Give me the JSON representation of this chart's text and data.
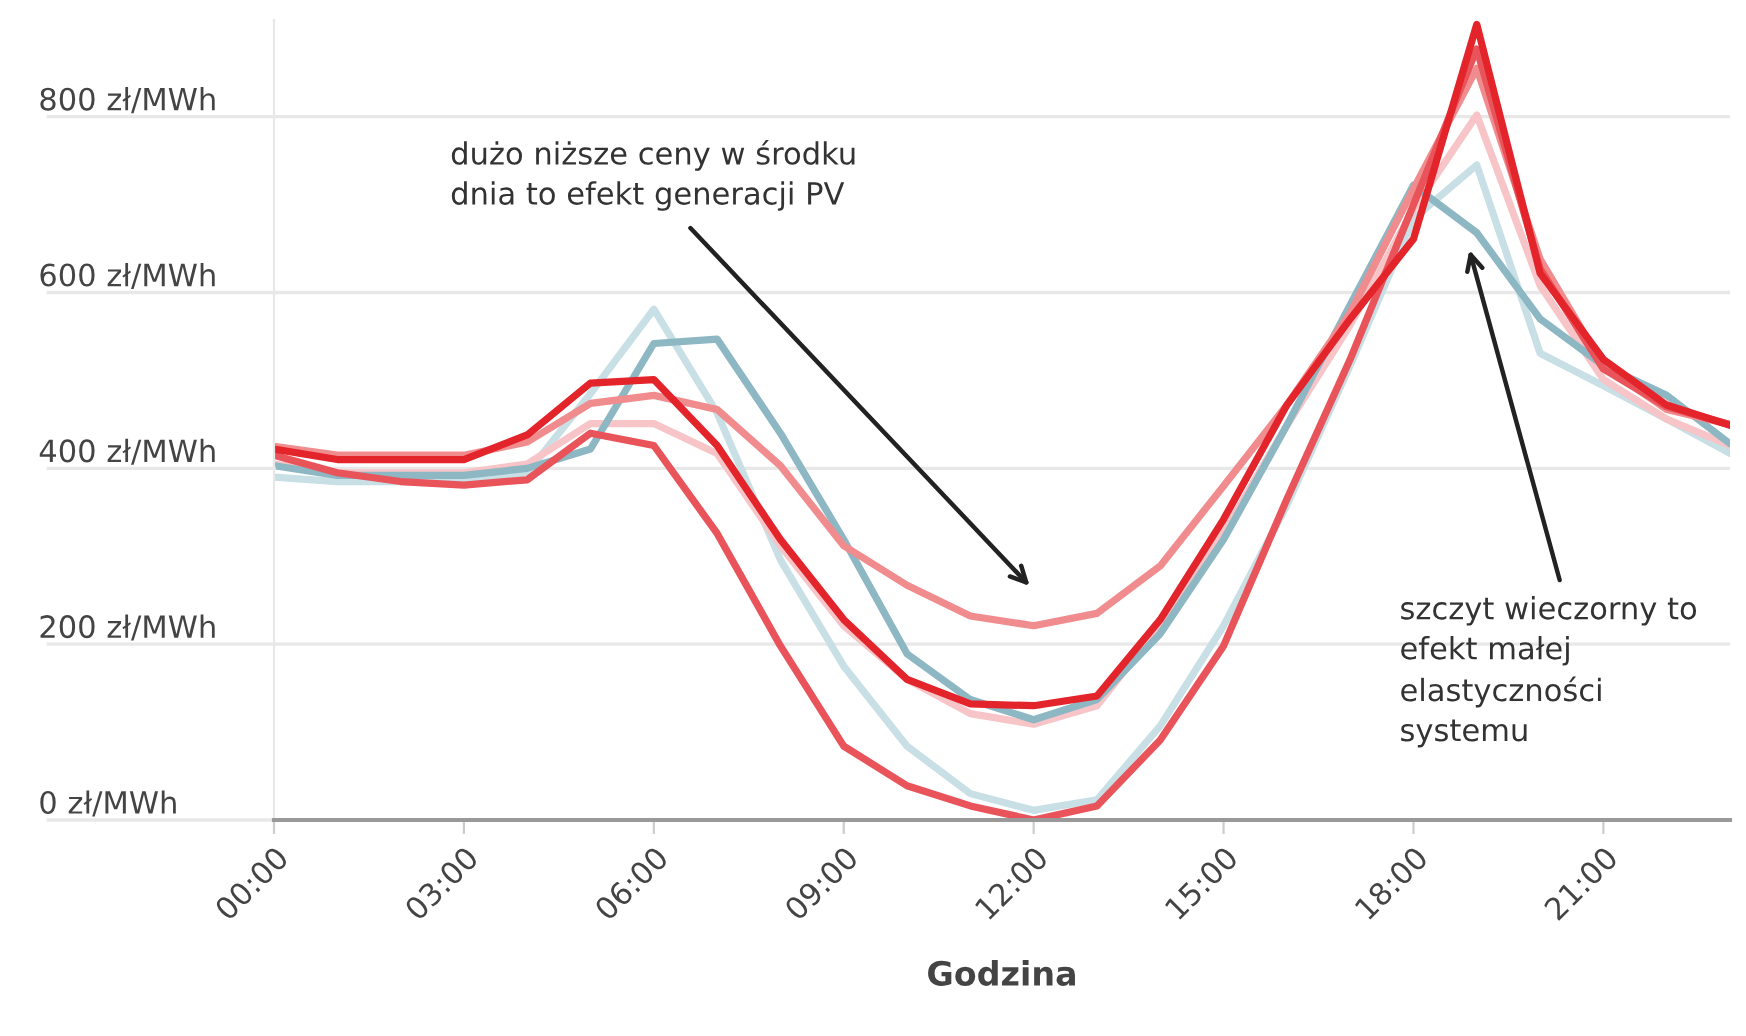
{
  "chart_data": {
    "type": "line",
    "xlabel": "Godzina",
    "xlim": [
      0,
      23
    ],
    "xticks": [
      {
        "value": 0,
        "label": "00:00"
      },
      {
        "value": 3,
        "label": "03:00"
      },
      {
        "value": 6,
        "label": "06:00"
      },
      {
        "value": 9,
        "label": "09:00"
      },
      {
        "value": 12,
        "label": "12:00"
      },
      {
        "value": 15,
        "label": "15:00"
      },
      {
        "value": 18,
        "label": "18:00"
      },
      {
        "value": 21,
        "label": "21:00"
      }
    ],
    "ylim": [
      0,
      910
    ],
    "yticks": [
      {
        "value": 0,
        "label": "0 zł/MWh"
      },
      {
        "value": 200,
        "label": "200 zł/MWh"
      },
      {
        "value": 400,
        "label": "400 zł/MWh"
      },
      {
        "value": 600,
        "label": "600 zł/MWh"
      },
      {
        "value": 800,
        "label": "800 zł/MWh"
      }
    ],
    "grid": "y",
    "marker": "none",
    "line_style": "solid",
    "x": [
      0,
      1,
      2,
      3,
      4,
      5,
      6,
      7,
      8,
      9,
      10,
      11,
      12,
      13,
      14,
      15,
      16,
      17,
      18,
      19,
      20,
      21,
      22,
      23
    ],
    "series": [
      {
        "color": "#c7dfe5",
        "values": [
          390,
          385,
          385,
          385,
          395,
          485,
          581,
          463,
          296,
          175,
          84,
          30,
          11,
          23,
          107,
          221,
          358,
          517,
          684,
          745,
          531,
          494,
          456,
          417
        ]
      },
      {
        "color": "#f7c4c7",
        "values": [
          405,
          395,
          395,
          395,
          405,
          451,
          451,
          417,
          312,
          221,
          160,
          121,
          109,
          130,
          221,
          326,
          449,
          563,
          695,
          802,
          608,
          501,
          456,
          426
        ]
      },
      {
        "color": "#8db7c3",
        "values": [
          403,
          392,
          392,
          392,
          400,
          422,
          542,
          547,
          440,
          319,
          189,
          137,
          114,
          137,
          212,
          319,
          449,
          586,
          722,
          668,
          570,
          517,
          483,
          428
        ]
      },
      {
        "color": "#f08c8e",
        "values": [
          425,
          415,
          415,
          415,
          430,
          474,
          483,
          467,
          403,
          312,
          267,
          232,
          221,
          235,
          289,
          380,
          472,
          577,
          718,
          855,
          638,
          517,
          467,
          450
        ]
      },
      {
        "color": "#e9545b",
        "values": [
          415,
          395,
          385,
          381,
          387,
          440,
          426,
          326,
          198,
          84,
          39,
          16,
          0,
          16,
          91,
          198,
          365,
          524,
          700,
          877,
          627,
          513,
          470,
          450
        ]
      },
      {
        "color": "#e3242b",
        "values": [
          422,
          410,
          410,
          410,
          438,
          497,
          501,
          426,
          319,
          228,
          160,
          132,
          130,
          141,
          228,
          342,
          472,
          570,
          661,
          905,
          622,
          524,
          472,
          449
        ]
      }
    ],
    "annotations": [
      "dużo niższe ceny w środku\ndnia to efekt generacji PV",
      "szczyt wieczorny to\nefekt małej\nelastyczności\nsystemu"
    ]
  }
}
